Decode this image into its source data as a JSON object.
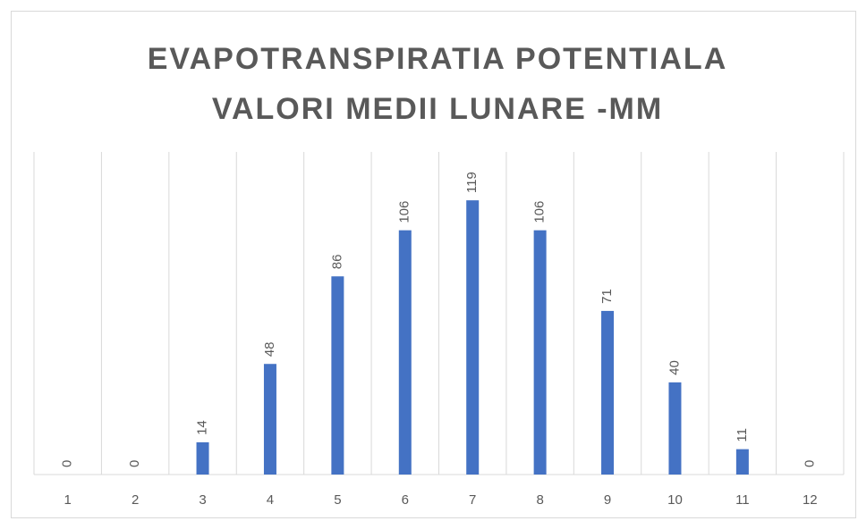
{
  "chart_data": {
    "type": "bar",
    "title": "EVAPOTRANSPIRATIA POTENTIALA VALORI MEDII LUNARE -MM",
    "categories": [
      "1",
      "2",
      "3",
      "4",
      "5",
      "6",
      "7",
      "8",
      "9",
      "10",
      "11",
      "12"
    ],
    "values": [
      0,
      0,
      14,
      48,
      86,
      106,
      119,
      106,
      71,
      40,
      11,
      0
    ],
    "color": "#4472c4",
    "ylim": [
      0,
      140
    ],
    "grid": true
  }
}
